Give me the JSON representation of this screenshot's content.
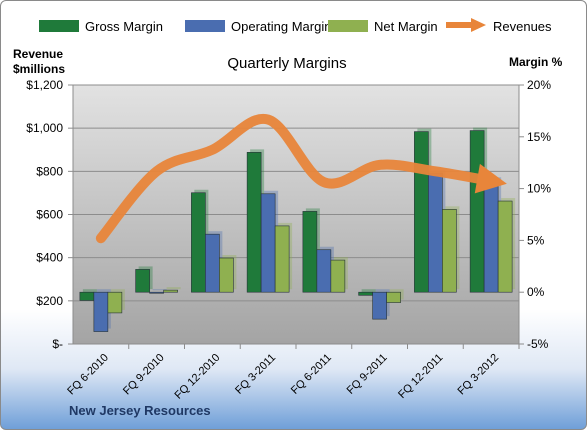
{
  "chart_data": {
    "type": "bar",
    "title": "Quarterly Margins",
    "company": "New Jersey Resources",
    "left_axis_label": "Revenue\n$millions",
    "right_axis_label": "Margin %",
    "categories": [
      "FQ 6-2010",
      "FQ 9-2010",
      "FQ 12-2010",
      "FQ 3-2011",
      "FQ 6-2011",
      "FQ 9-2011",
      "FQ 12-2011",
      "FQ 3-2012"
    ],
    "left_axis": {
      "min": 0,
      "max": 1200,
      "ticks": [
        "$-",
        "$200",
        "$400",
        "$600",
        "$800",
        "$1,000",
        "$1,200"
      ]
    },
    "right_axis": {
      "min": -5,
      "max": 20,
      "ticks": [
        "-5%",
        "0%",
        "5%",
        "10%",
        "15%",
        "20%"
      ]
    },
    "legend_position": "top",
    "grid": true,
    "series": [
      {
        "name": "Gross Margin",
        "axis": "right",
        "color": "#1f7a3a",
        "values": [
          -0.8,
          2.2,
          9.6,
          13.5,
          7.8,
          -0.3,
          15.5,
          15.6
        ]
      },
      {
        "name": "Operating Margin",
        "axis": "right",
        "color": "#4a6db0",
        "values": [
          -3.8,
          -0.1,
          5.6,
          9.5,
          4.1,
          -2.6,
          11.5,
          10.8
        ]
      },
      {
        "name": "Net Margin",
        "axis": "right",
        "color": "#8fb050",
        "values": [
          -2.0,
          0.2,
          3.3,
          6.4,
          3.1,
          -1.0,
          8.0,
          8.8
        ]
      },
      {
        "name": "Revenues",
        "axis": "left",
        "type": "line",
        "color": "#e8853a",
        "values": [
          490,
          800,
          900,
          1040,
          750,
          830,
          800,
          755
        ]
      }
    ]
  }
}
